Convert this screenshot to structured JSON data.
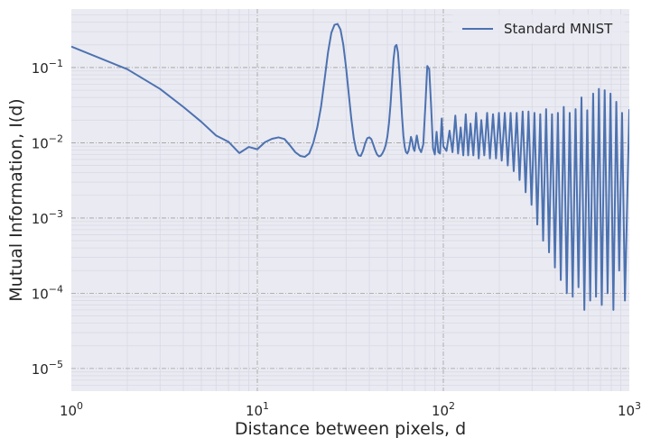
{
  "chart_data": {
    "type": "line",
    "xlabel": "Distance between pixels, d",
    "ylabel": "Mutual Information, I(d)",
    "x_scale": "log",
    "y_scale": "log",
    "xlim": [
      1,
      1000
    ],
    "ylim": [
      5e-06,
      0.6
    ],
    "x_ticks": [
      {
        "value": 1,
        "base": "10",
        "exp": "0"
      },
      {
        "value": 10,
        "base": "10",
        "exp": "1"
      },
      {
        "value": 100,
        "base": "10",
        "exp": "2"
      },
      {
        "value": 1000,
        "base": "10",
        "exp": "3"
      }
    ],
    "y_ticks": [
      {
        "value": 1e-05,
        "base": "10",
        "exp": "−5"
      },
      {
        "value": 0.0001,
        "base": "10",
        "exp": "−4"
      },
      {
        "value": 0.001,
        "base": "10",
        "exp": "−3"
      },
      {
        "value": 0.01,
        "base": "10",
        "exp": "−2"
      },
      {
        "value": 0.1,
        "base": "10",
        "exp": "−1"
      }
    ],
    "grid": true,
    "legend_position": "top-right",
    "colors": {
      "line": "#4c72b0",
      "background": "#eaeaf2",
      "grid_major": "#a0a0a0",
      "grid_minor": "#d9d9e6"
    },
    "series": [
      {
        "name": "Standard MNIST",
        "x": [
          1,
          2,
          3,
          4,
          5,
          6,
          7,
          8,
          9,
          10,
          11,
          12,
          13,
          14,
          15,
          16,
          17,
          18,
          19,
          20,
          21,
          22,
          23,
          24,
          25,
          26,
          27,
          28,
          29,
          30,
          31,
          32,
          33,
          34,
          35,
          36,
          37,
          38,
          39,
          40,
          41,
          42,
          43,
          44,
          45,
          46,
          47,
          48,
          49,
          50,
          51,
          52,
          53,
          54,
          55,
          56,
          57,
          58,
          59,
          60,
          61,
          62,
          63,
          64,
          65,
          66,
          67,
          68,
          69,
          70,
          72,
          74,
          76,
          78,
          80,
          82,
          84,
          86,
          88,
          90,
          92,
          94,
          96,
          98,
          100,
          104,
          108,
          112,
          116,
          120,
          124,
          128,
          132,
          136,
          140,
          145,
          150,
          155,
          160,
          166,
          172,
          178,
          185,
          192,
          199,
          206,
          214,
          222,
          230,
          239,
          248,
          257,
          267,
          277,
          287,
          298,
          309,
          320,
          332,
          344,
          357,
          370,
          384,
          398,
          413,
          428,
          444,
          461,
          478,
          496,
          514,
          533,
          553,
          573,
          594,
          616,
          639,
          662,
          686,
          711,
          737,
          764,
          792,
          821,
          851,
          882,
          914,
          947,
          1000
        ],
        "values": [
          0.19,
          0.095,
          0.052,
          0.03,
          0.019,
          0.0125,
          0.0103,
          0.0073,
          0.0088,
          0.0082,
          0.0102,
          0.0113,
          0.0118,
          0.0112,
          0.0092,
          0.0075,
          0.0067,
          0.0065,
          0.0072,
          0.01,
          0.016,
          0.03,
          0.07,
          0.16,
          0.29,
          0.37,
          0.38,
          0.32,
          0.2,
          0.1,
          0.045,
          0.021,
          0.0115,
          0.008,
          0.0068,
          0.0067,
          0.0078,
          0.0098,
          0.0115,
          0.0118,
          0.0112,
          0.0095,
          0.008,
          0.007,
          0.0066,
          0.0067,
          0.0072,
          0.008,
          0.0093,
          0.012,
          0.018,
          0.032,
          0.066,
          0.13,
          0.19,
          0.2,
          0.16,
          0.09,
          0.045,
          0.022,
          0.0125,
          0.0088,
          0.0075,
          0.0072,
          0.0078,
          0.0095,
          0.012,
          0.0105,
          0.0085,
          0.0078,
          0.0125,
          0.0085,
          0.0075,
          0.0095,
          0.03,
          0.105,
          0.095,
          0.03,
          0.0085,
          0.007,
          0.014,
          0.0075,
          0.0072,
          0.021,
          0.009,
          0.0078,
          0.0145,
          0.0075,
          0.023,
          0.0072,
          0.016,
          0.0068,
          0.024,
          0.0068,
          0.018,
          0.0068,
          0.025,
          0.0062,
          0.02,
          0.0068,
          0.025,
          0.0062,
          0.024,
          0.0062,
          0.025,
          0.0058,
          0.025,
          0.005,
          0.025,
          0.0042,
          0.025,
          0.0032,
          0.026,
          0.0022,
          0.026,
          0.0015,
          0.025,
          0.00082,
          0.024,
          0.0005,
          0.028,
          0.00035,
          0.024,
          0.00022,
          0.025,
          0.00015,
          0.03,
          0.0001,
          0.025,
          9e-05,
          0.028,
          0.00012,
          0.04,
          6e-05,
          0.027,
          8e-05,
          0.045,
          9e-05,
          0.052,
          7e-05,
          0.05,
          0.0001,
          0.045,
          6e-05,
          0.035,
          0.0002,
          0.025,
          8e-05,
          0.028
        ]
      }
    ]
  }
}
